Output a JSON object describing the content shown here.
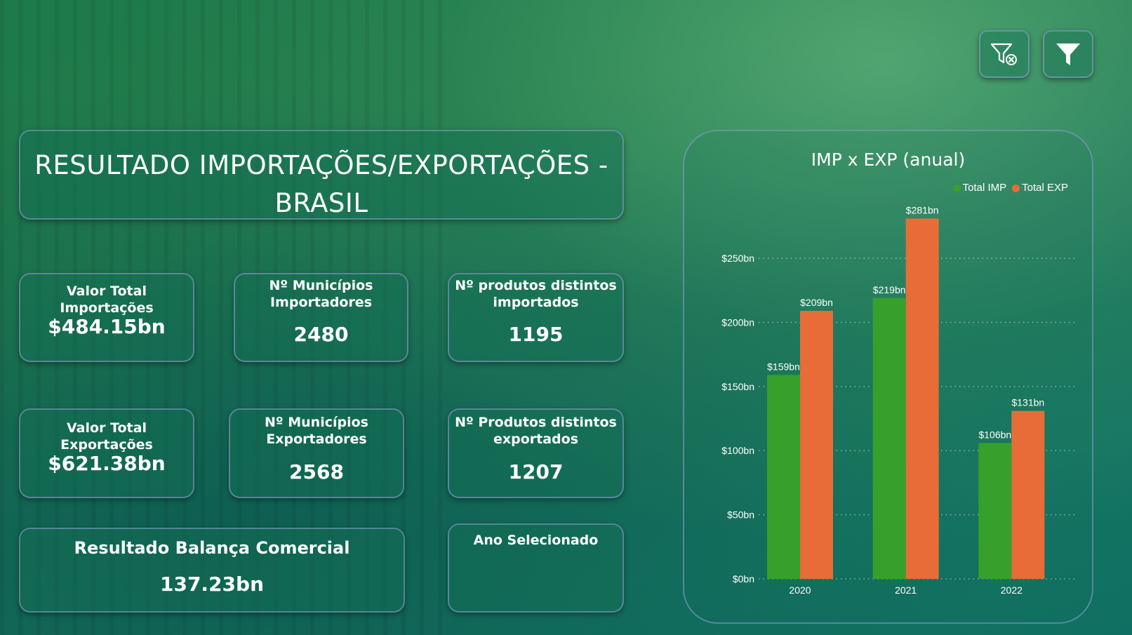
{
  "title": "RESULTADO IMPORTAÇÕES/EXPORTAÇÕES - BRASIL",
  "title_lines": [
    "RESULTADO IMPORTAÇÕES/EXPORTAÇÕES -",
    "BRASIL"
  ],
  "toolbar": {
    "clear_filter_icon": "filter-clear-icon",
    "filter_icon": "filter-icon"
  },
  "kpis": {
    "import_total": {
      "label": "Valor Total Importações",
      "value": "$484.15bn"
    },
    "import_municipalities": {
      "label_lines": [
        "Nº Municípios",
        "Importadores"
      ],
      "value": "2480"
    },
    "import_products": {
      "label_lines": [
        "Nº produtos distintos",
        "importados"
      ],
      "value": "1195"
    },
    "export_total": {
      "label": "Valor Total Exportações",
      "value": "$621.38bn"
    },
    "export_municipalities": {
      "label_lines": [
        "Nº Municípios",
        "Exportadores"
      ],
      "value": "2568"
    },
    "export_products": {
      "label_lines": [
        "Nº Produtos distintos",
        "exportados"
      ],
      "value": "1207"
    },
    "trade_balance": {
      "label": "Resultado Balança Comercial",
      "value": "137.23bn"
    },
    "selected_year": {
      "label": "Ano Selecionado",
      "value": ""
    }
  },
  "colors": {
    "imp": "#36a02b",
    "exp": "#e86c37"
  },
  "chart_data": {
    "type": "bar",
    "title": "IMP x EXP (anual)",
    "categories": [
      "2020",
      "2021",
      "2022"
    ],
    "series": [
      {
        "name": "Total IMP",
        "values": [
          159,
          219,
          106
        ],
        "labels": [
          "$159bn",
          "$219bn",
          "$106bn"
        ]
      },
      {
        "name": "Total EXP",
        "values": [
          209,
          281,
          131
        ],
        "labels": [
          "$209bn",
          "$281bn",
          "$131bn"
        ]
      }
    ],
    "yticks": [
      0,
      50,
      100,
      150,
      200,
      250
    ],
    "ytick_labels": [
      "$0bn",
      "$50bn",
      "$100bn",
      "$150bn",
      "$200bn",
      "$250bn"
    ],
    "ylim": [
      0,
      290
    ],
    "grid": true,
    "legend": "top-right"
  }
}
